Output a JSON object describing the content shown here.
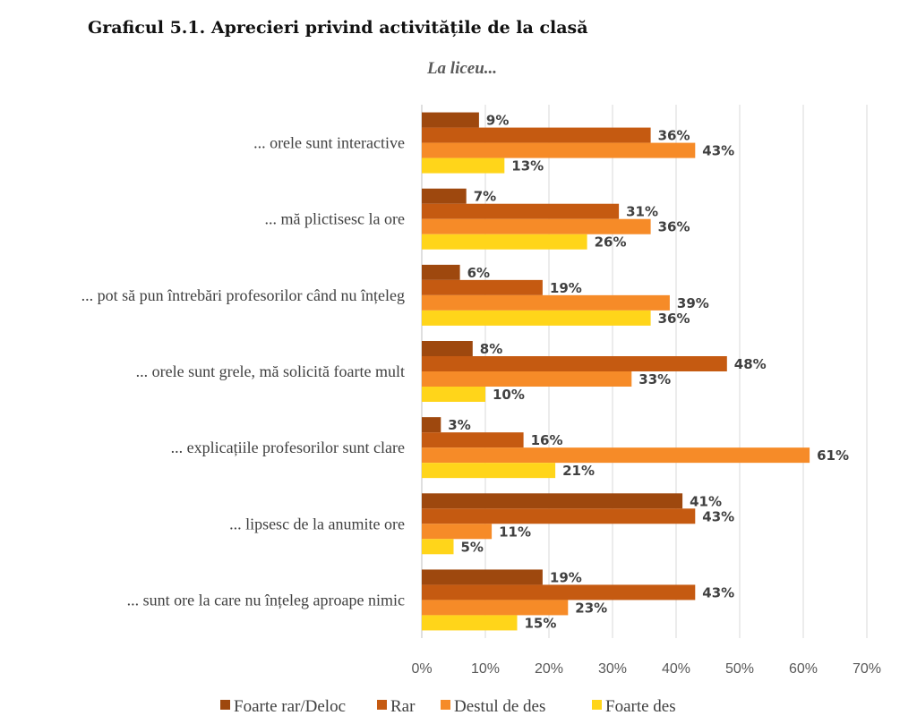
{
  "chart_data": {
    "type": "bar",
    "orientation": "horizontal",
    "title": "Graficul 5.1. Aprecieri privind activitățile de la clasă",
    "subtitle": "La liceu...",
    "categories": [
      "... orele sunt interactive",
      "... mă plictisesc la ore",
      "... pot să pun întrebări profesorilor când nu înțeleg",
      "... orele sunt grele, mă solicită foarte mult",
      "... explicațiile profesorilor sunt clare",
      "... lipsesc de la anumite ore",
      "... sunt ore la care nu înțeleg aproape nimic"
    ],
    "series": [
      {
        "name": "Foarte rar/Deloc",
        "color": "#9E480E",
        "values": [
          9,
          7,
          6,
          8,
          3,
          41,
          19
        ]
      },
      {
        "name": "Rar",
        "color": "#C55A11",
        "values": [
          36,
          31,
          19,
          48,
          16,
          43,
          43
        ]
      },
      {
        "name": "Destul de des",
        "color": "#F68B28",
        "values": [
          43,
          36,
          39,
          33,
          61,
          11,
          23
        ]
      },
      {
        "name": "Foarte des",
        "color": "#FFD51A",
        "values": [
          13,
          26,
          36,
          10,
          21,
          5,
          15
        ]
      }
    ],
    "xlim": [
      0,
      70
    ],
    "xticks": [
      "0%",
      "10%",
      "20%",
      "30%",
      "40%",
      "50%",
      "60%",
      "70%"
    ],
    "xlabel": "",
    "ylabel": "",
    "grid": true,
    "legend": "bottom",
    "value_suffix": "%"
  }
}
